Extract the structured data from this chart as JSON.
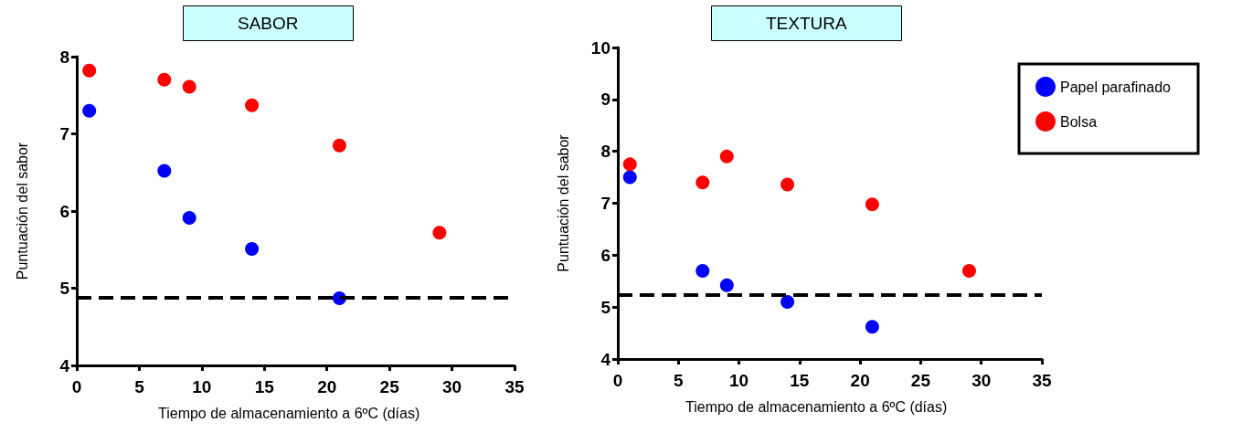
{
  "chart_data": [
    {
      "type": "scatter",
      "title": "SABOR",
      "xlabel": "Tiempo de almacenamiento a 6ºC (días)",
      "ylabel": "Puntuación del sabor",
      "xlim": [
        0,
        35
      ],
      "xticks": [
        0,
        5,
        10,
        15,
        20,
        25,
        30,
        35
      ],
      "ylim": [
        4,
        8
      ],
      "yticks": [
        4,
        5,
        6,
        7,
        8
      ],
      "grid": false,
      "legend": false,
      "marker": "circle",
      "series": [
        {
          "color": "#0000ff",
          "x": [
            1,
            7,
            9,
            14,
            21
          ],
          "values": [
            7.3,
            6.52,
            5.91,
            5.51,
            4.87
          ]
        },
        {
          "color": "#ff0000",
          "x": [
            1,
            7,
            9,
            14,
            21,
            29
          ],
          "values": [
            7.82,
            7.7,
            7.61,
            7.37,
            6.85,
            5.72
          ]
        }
      ],
      "ref_lines": [
        {
          "axis": "y",
          "value": 4.88,
          "label": null,
          "color": "#000000",
          "line_style": "dashed"
        }
      ]
    },
    {
      "type": "scatter",
      "title": "TEXTURA",
      "xlabel": "Tiempo de almacenamiento a 6ºC (días)",
      "ylabel": "Puntuación del sabor",
      "xlim": [
        0,
        35
      ],
      "xticks": [
        0,
        5,
        10,
        15,
        20,
        25,
        30,
        35
      ],
      "ylim": [
        4,
        10
      ],
      "yticks": [
        4,
        5,
        6,
        7,
        8,
        9,
        10
      ],
      "grid": false,
      "legend": "top right",
      "marker": "circle",
      "series": [
        {
          "name": "Papel parafinado",
          "color": "#0000ff",
          "x": [
            1,
            7,
            9,
            14,
            21
          ],
          "values": [
            7.5,
            5.7,
            5.42,
            5.1,
            4.62
          ]
        },
        {
          "name": "Bolsa",
          "color": "#ff0000",
          "x": [
            1,
            7,
            9,
            14,
            21,
            29
          ],
          "values": [
            7.75,
            7.4,
            7.9,
            7.36,
            6.98,
            5.7
          ]
        }
      ],
      "ref_lines": [
        {
          "axis": "y",
          "value": 5.23,
          "label": null,
          "color": "#000000",
          "line_style": "dashed"
        }
      ]
    }
  ]
}
